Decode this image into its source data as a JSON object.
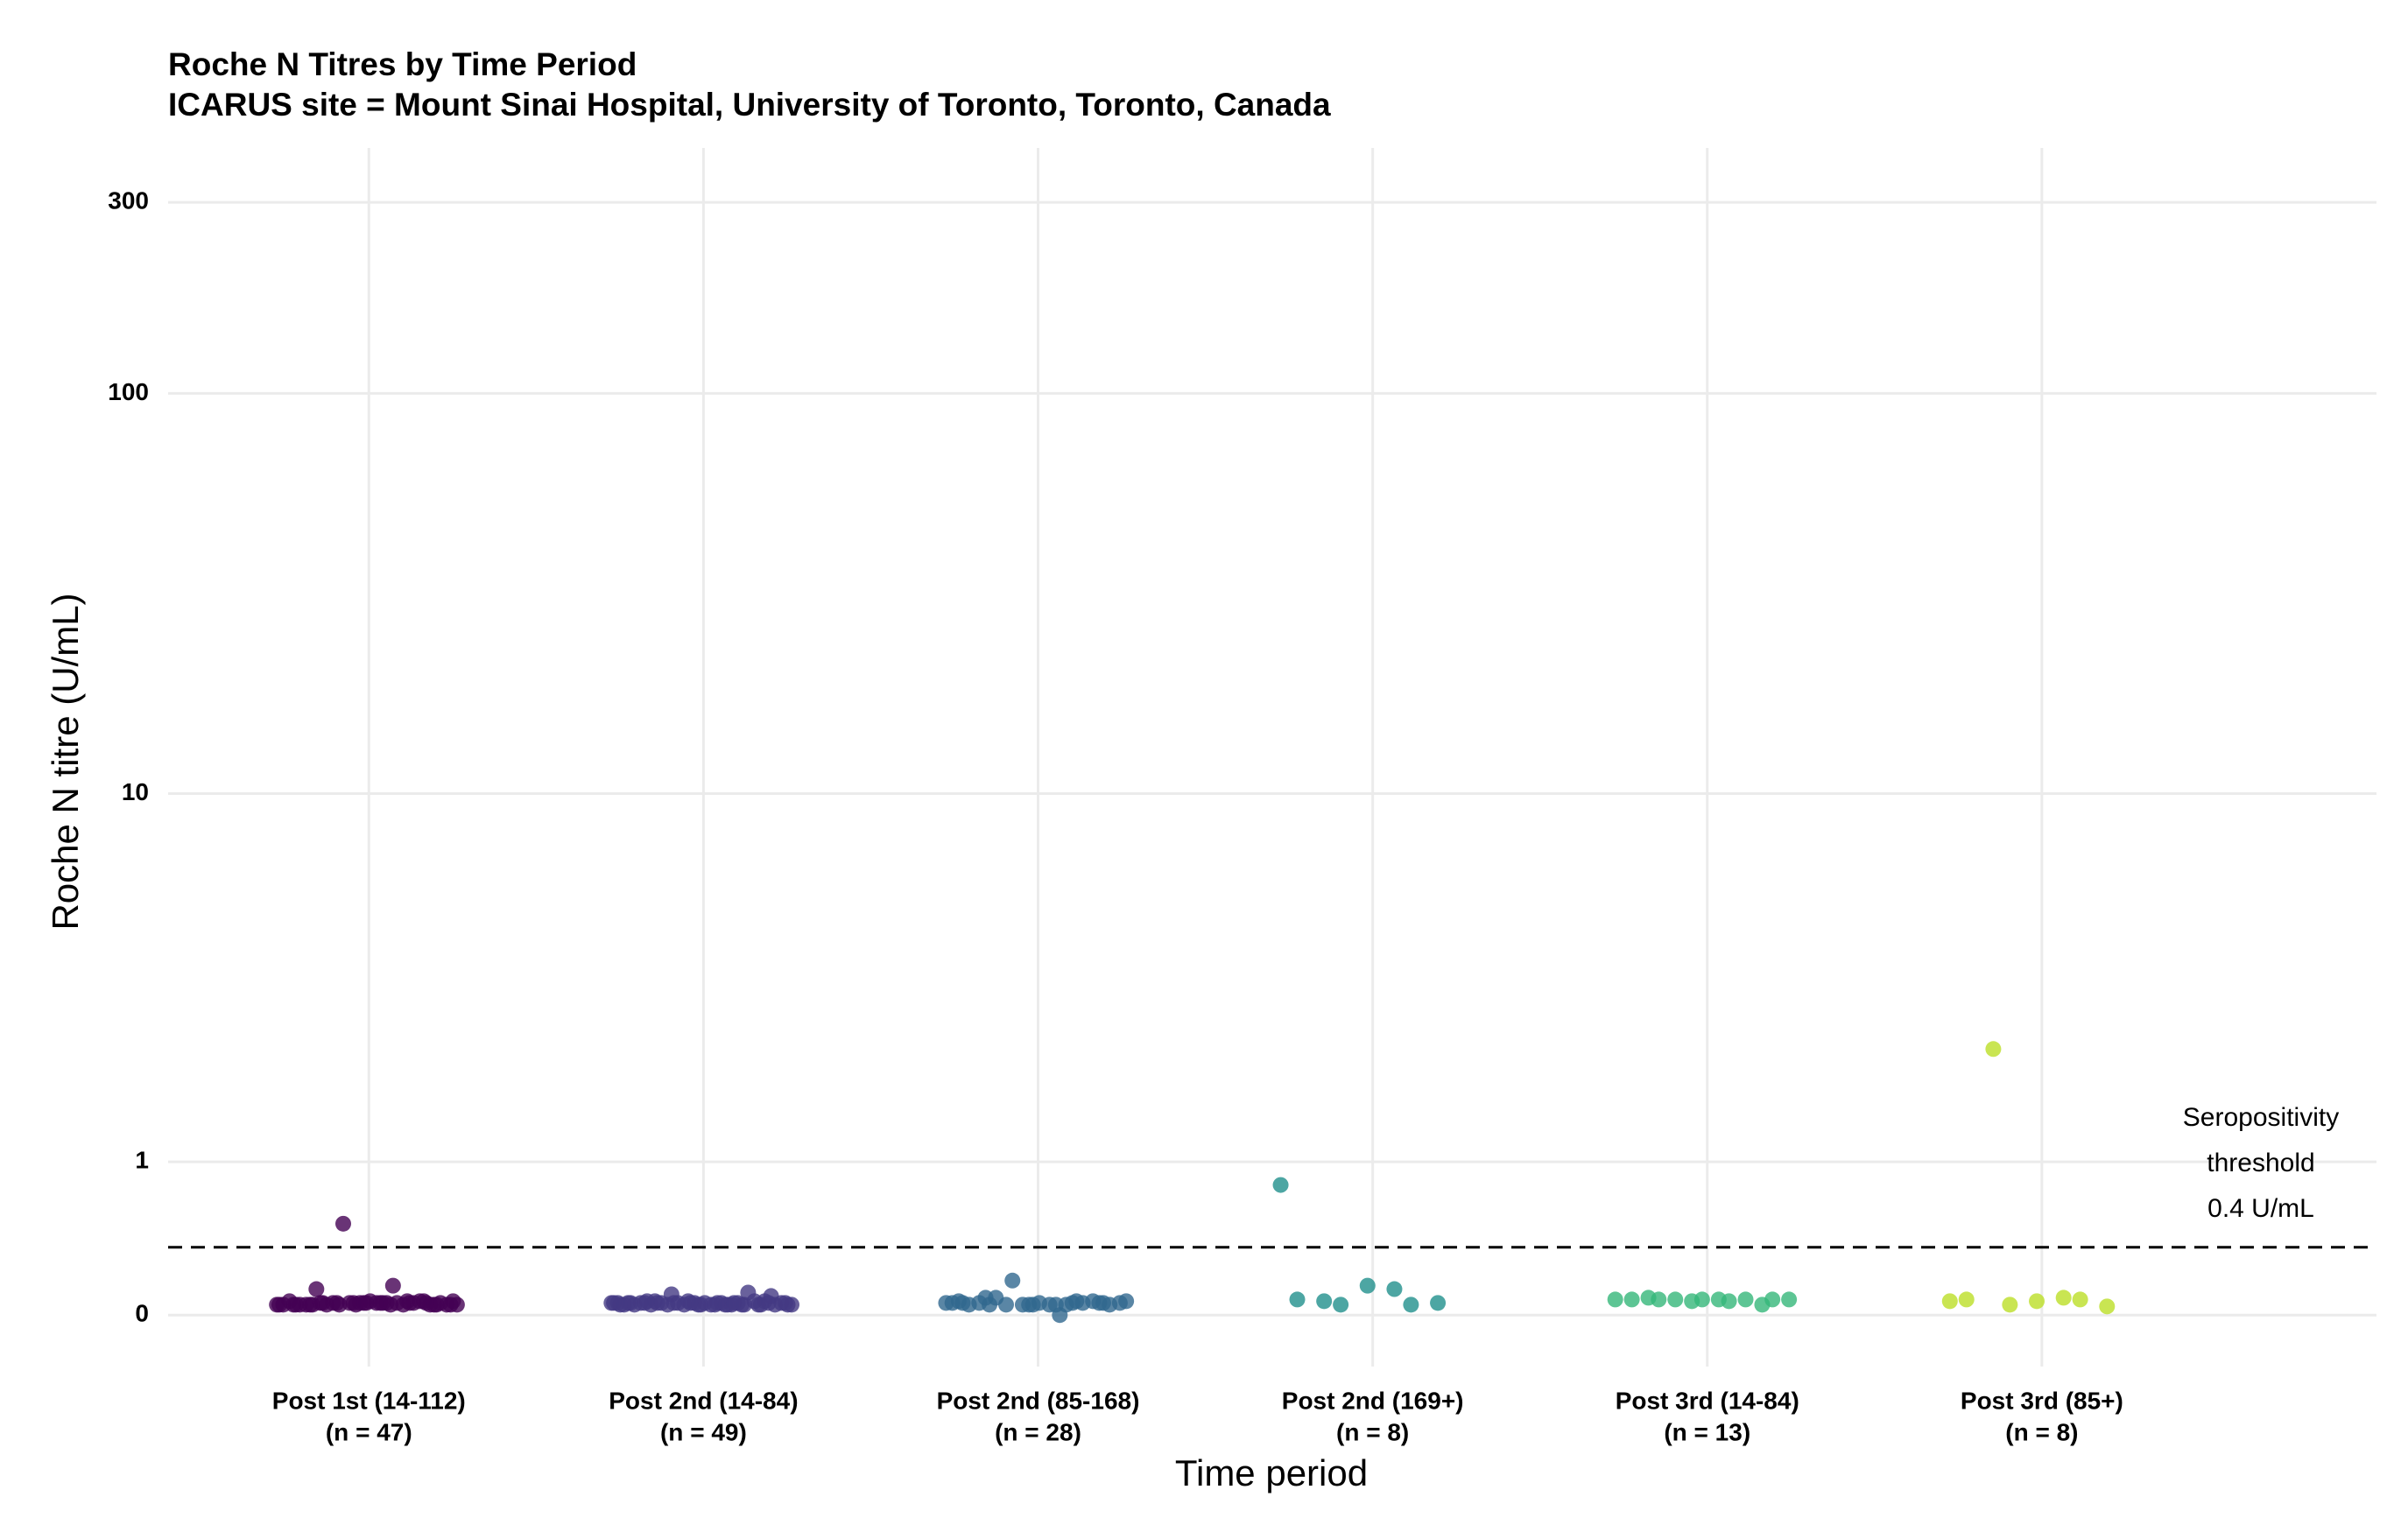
{
  "chart_data": {
    "type": "strip",
    "title": "Roche N Titres by Time Period",
    "subtitle": "ICARUS site = Mount Sinai Hospital, University of Toronto, Toronto, Canada",
    "x_label": "Time period",
    "y_label": "Roche N titre (U/mL)",
    "yscale": "asinh",
    "ylim": [
      -0.3,
      410
    ],
    "yticks": [
      0,
      1,
      10,
      100,
      300
    ],
    "grid": true,
    "categories": [
      [
        "Post 1st (14-112)",
        "(n = 47)"
      ],
      [
        "Post 2nd (14-84)",
        "(n = 49)"
      ],
      [
        "Post 2nd (85-168)",
        "(n = 28)"
      ],
      [
        "Post 2nd (169+)",
        "(n = 8)"
      ],
      [
        "Post 3rd (14-84)",
        "(n = 13)"
      ],
      [
        "Post 3rd (85+)",
        "(n = 8)"
      ]
    ],
    "colors": [
      "#440154",
      "#443A83",
      "#31688E",
      "#21908C",
      "#35B779",
      "#BBDF27"
    ],
    "values": [
      [
        0.06,
        0.06,
        0.07,
        0.06,
        0.07,
        0.06,
        0.08,
        0.07,
        0.06,
        0.07,
        0.06,
        0.08,
        0.07,
        0.06,
        0.07,
        0.06,
        0.07,
        0.08,
        0.06,
        0.07,
        0.55,
        0.06,
        0.07,
        0.15,
        0.06,
        0.07,
        0.08,
        0.06,
        0.07,
        0.06,
        0.07,
        0.06,
        0.08,
        0.07,
        0.06,
        0.17,
        0.07,
        0.06,
        0.07,
        0.06,
        0.07,
        0.06,
        0.08,
        0.07,
        0.06,
        0.07,
        0.06
      ],
      [
        0.07,
        0.06,
        0.08,
        0.07,
        0.06,
        0.07,
        0.06,
        0.12,
        0.07,
        0.06,
        0.07,
        0.06,
        0.08,
        0.07,
        0.06,
        0.07,
        0.06,
        0.07,
        0.06,
        0.13,
        0.07,
        0.06,
        0.07,
        0.06,
        0.08,
        0.07,
        0.06,
        0.07,
        0.06,
        0.07,
        0.06,
        0.07,
        0.08,
        0.06,
        0.07,
        0.06,
        0.07,
        0.11,
        0.06,
        0.07,
        0.06,
        0.07,
        0.06,
        0.07,
        0.08,
        0.06,
        0.07,
        0.06,
        0.07
      ],
      [
        0.07,
        0.0,
        0.06,
        0.07,
        0.06,
        0.07,
        0.08,
        0.06,
        0.07,
        0.06,
        0.07,
        0.08,
        0.06,
        0.07,
        0.06,
        0.1,
        0.06,
        0.07,
        0.06,
        0.07,
        0.2,
        0.08,
        0.06,
        0.1,
        0.07,
        0.06,
        0.08,
        0.07
      ],
      [
        0.82,
        0.15,
        0.08,
        0.07,
        0.17,
        0.09,
        0.06,
        0.06
      ],
      [
        0.09,
        0.08,
        0.09,
        0.09,
        0.09,
        0.09,
        0.09,
        0.09,
        0.09,
        0.09,
        0.1,
        0.06,
        0.08
      ],
      [
        0.08,
        0.1,
        2.2,
        0.05,
        0.08,
        0.09,
        0.09,
        0.06
      ]
    ],
    "threshold": 0.4,
    "annotation": [
      "Seropositivity",
      "threshold",
      "0.4 U/mL"
    ]
  }
}
